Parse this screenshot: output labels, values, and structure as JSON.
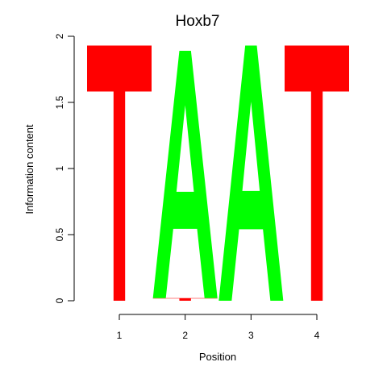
{
  "chart_data": {
    "type": "sequence-logo",
    "title": "Hoxb7",
    "xlabel": "Position",
    "ylabel": "Information content",
    "ylim": [
      0,
      2
    ],
    "y_ticks": [
      "0",
      "0.5",
      "1",
      "1.5",
      "2"
    ],
    "y_tick_values": [
      0,
      0.5,
      1,
      1.5,
      2
    ],
    "x_ticks": [
      "1",
      "2",
      "3",
      "4"
    ],
    "x_tick_values": [
      1,
      2,
      3,
      4
    ],
    "colors": {
      "A": "#00ff00",
      "T": "#ff0000"
    },
    "positions": [
      {
        "position": 1,
        "letters": [
          {
            "letter": "T",
            "height": 1.93
          }
        ]
      },
      {
        "position": 2,
        "letters": [
          {
            "letter": "T",
            "height": 0.02
          },
          {
            "letter": "A",
            "height": 1.87
          }
        ]
      },
      {
        "position": 3,
        "letters": [
          {
            "letter": "A",
            "height": 1.93
          }
        ]
      },
      {
        "position": 4,
        "letters": [
          {
            "letter": "T",
            "height": 1.93
          }
        ]
      }
    ]
  }
}
